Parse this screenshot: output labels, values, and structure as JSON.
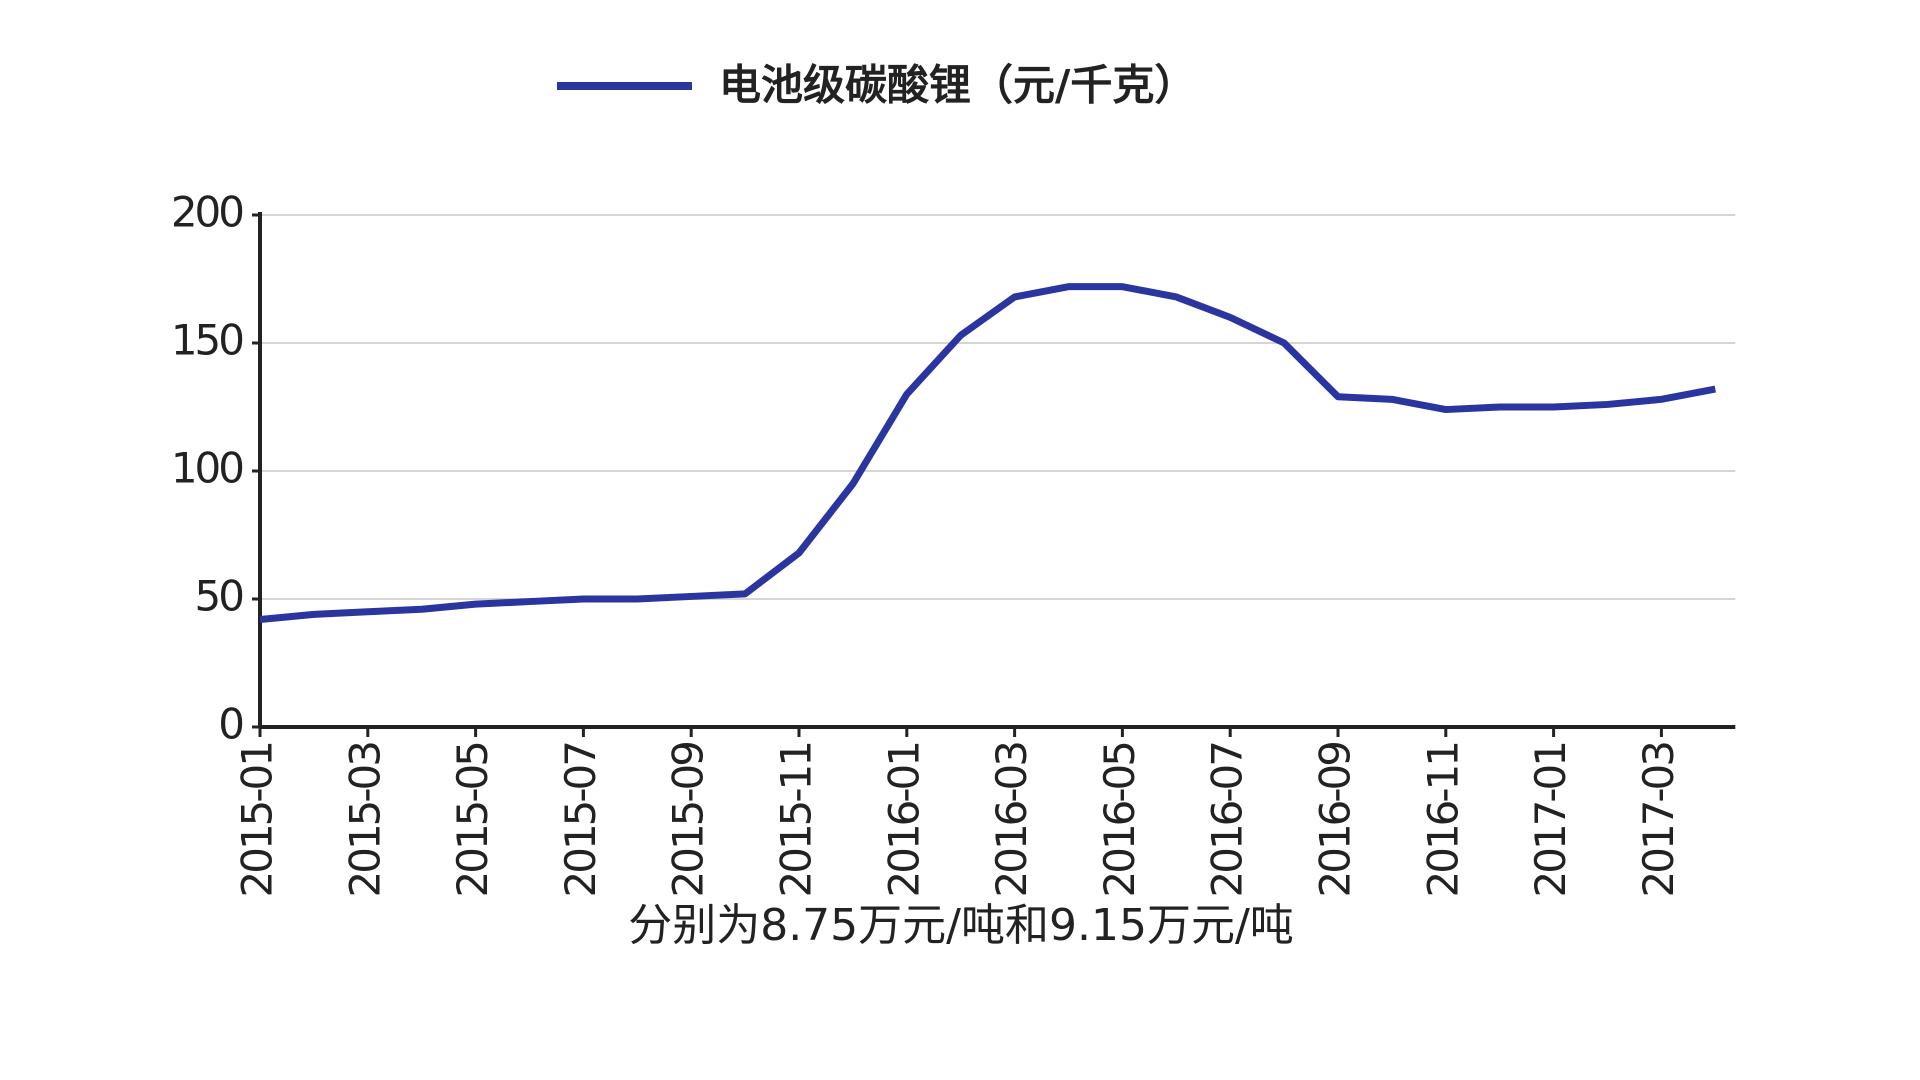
{
  "chart_data": {
    "type": "line",
    "categories": [
      "2015-01",
      null,
      "2015-03",
      null,
      "2015-05",
      null,
      "2015-07",
      null,
      "2015-09",
      null,
      "2015-11",
      null,
      "2016-01",
      null,
      "2016-03",
      null,
      "2016-05",
      null,
      "2016-07",
      null,
      "2016-09",
      null,
      "2016-11",
      null,
      "2017-01",
      null,
      "2017-03",
      null
    ],
    "series": [
      {
        "name": "电池级碳酸锂（元/千克）",
        "color": "#2b35a0",
        "values": [
          42,
          44,
          45,
          46,
          48,
          49,
          50,
          50,
          51,
          52,
          68,
          95,
          130,
          153,
          168,
          172,
          172,
          168,
          160,
          150,
          129,
          128,
          124,
          125,
          125,
          126,
          128,
          132
        ]
      }
    ],
    "ylim": [
      0,
      200
    ],
    "yticks": [
      0,
      50,
      100,
      150,
      200
    ],
    "grid": true
  },
  "caption": "分别为8.75万元/吨和9.15万元/吨"
}
